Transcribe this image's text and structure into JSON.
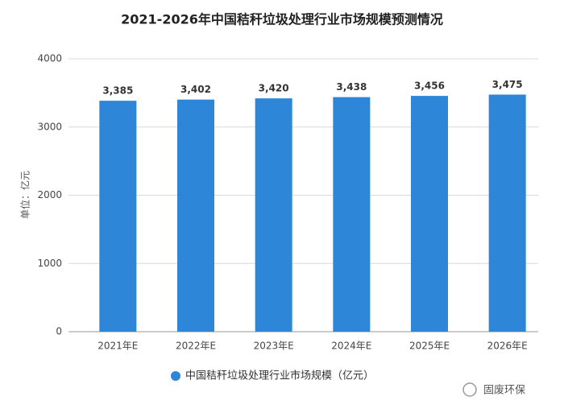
{
  "chart_data": {
    "type": "bar",
    "title": "2021-2026年中国秸秆垃圾处理行业市场规模预测情况",
    "y_label": "单位：亿元",
    "categories": [
      "2021年E",
      "2022年E",
      "2023年E",
      "2024年E",
      "2025年E",
      "2026年E"
    ],
    "series": [
      {
        "name": "中国秸秆垃圾处理行业市场规模（亿元）",
        "color": "#2e86d9",
        "values": [
          3385,
          3402,
          3420,
          3438,
          3456,
          3475
        ],
        "value_labels": [
          "3,385",
          "3,402",
          "3,420",
          "3,438",
          "3,456",
          "3,475"
        ]
      }
    ],
    "ylim": [
      0,
      4000
    ],
    "yticks": [
      0,
      1000,
      2000,
      3000,
      4000
    ],
    "grid": true,
    "legend": "bottom",
    "watermark": "固废环保"
  }
}
